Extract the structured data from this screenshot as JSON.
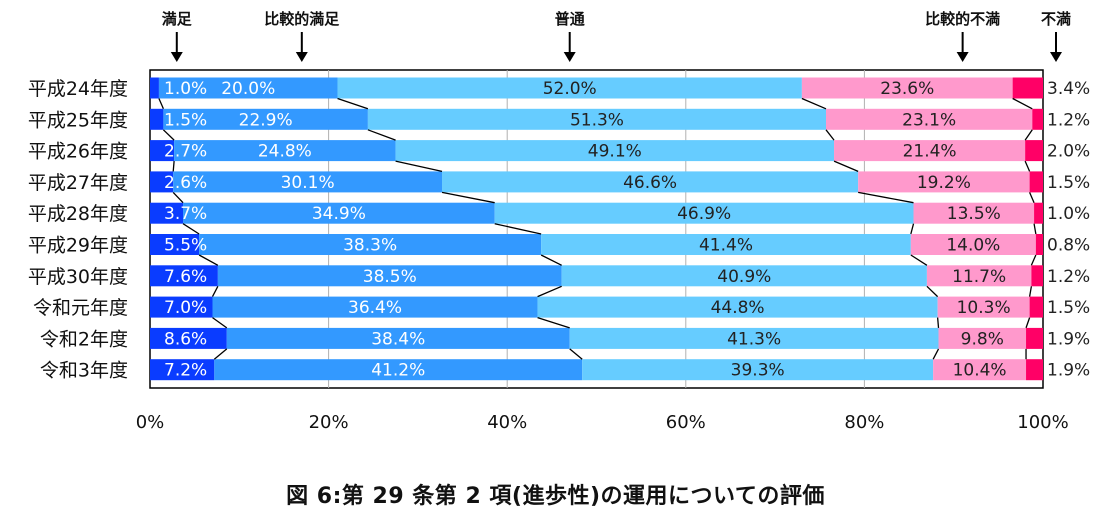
{
  "chart_data": {
    "type": "bar",
    "orientation": "horizontal-stacked-100",
    "title": "図 6:第 29 条第 2 項(進歩性)の運用についての評価",
    "categories": [
      "平成24年度",
      "平成25年度",
      "平成26年度",
      "平成27年度",
      "平成28年度",
      "平成29年度",
      "平成30年度",
      "令和元年度",
      "令和2年度",
      "令和3年度"
    ],
    "series": [
      {
        "name": "満足",
        "color": "#0a3cff",
        "values": [
          1.0,
          1.5,
          2.7,
          2.6,
          3.7,
          5.5,
          7.6,
          7.0,
          8.6,
          7.2
        ],
        "labels": [
          "1.0%",
          "1.5%",
          "2.7%",
          "2.6%",
          "3.7%",
          "5.5%",
          "7.6%",
          "7.0%",
          "8.6%",
          "7.2%"
        ]
      },
      {
        "name": "比較的満足",
        "color": "#3399ff",
        "values": [
          20.0,
          22.9,
          24.8,
          30.1,
          34.9,
          38.3,
          38.5,
          36.4,
          38.4,
          41.2
        ],
        "labels": [
          "20.0%",
          "22.9%",
          "24.8%",
          "30.1%",
          "34.9%",
          "38.3%",
          "38.5%",
          "36.4%",
          "38.4%",
          "41.2%"
        ]
      },
      {
        "name": "普通",
        "color": "#66ccff",
        "values": [
          52.0,
          51.3,
          49.1,
          46.6,
          46.9,
          41.4,
          40.9,
          44.8,
          41.3,
          39.3
        ],
        "labels": [
          "52.0%",
          "51.3%",
          "49.1%",
          "46.6%",
          "46.9%",
          "41.4%",
          "40.9%",
          "44.8%",
          "41.3%",
          "39.3%"
        ]
      },
      {
        "name": "比較的不満",
        "color": "#ff99cc",
        "values": [
          23.6,
          23.1,
          21.4,
          19.2,
          13.5,
          14.0,
          11.7,
          10.3,
          9.8,
          10.4
        ],
        "labels": [
          "23.6%",
          "23.1%",
          "21.4%",
          "19.2%",
          "13.5%",
          "14.0%",
          "11.7%",
          "10.3%",
          "9.8%",
          "10.4%"
        ]
      },
      {
        "name": "不満",
        "color": "#ff0066",
        "values": [
          3.4,
          1.2,
          2.0,
          1.5,
          1.0,
          0.8,
          1.2,
          1.5,
          1.9,
          1.9
        ],
        "labels": [
          "3.4%",
          "1.2%",
          "2.0%",
          "1.5%",
          "1.0%",
          "0.8%",
          "1.2%",
          "1.5%",
          "1.9%",
          "1.9%"
        ]
      }
    ],
    "xlim": [
      0,
      100
    ],
    "xticks": [
      "0%",
      "20%",
      "40%",
      "60%",
      "80%",
      "100%"
    ],
    "grid": true,
    "legend": "top-arrows",
    "legend_labels": [
      {
        "text": "満足",
        "at": 3.0
      },
      {
        "text": "比較的満足",
        "at": 17.0
      },
      {
        "text": "普通",
        "at": 47.0
      },
      {
        "text": "比較的不満",
        "at": 91.0
      },
      {
        "text": "不満",
        "at": 100.0
      }
    ]
  }
}
